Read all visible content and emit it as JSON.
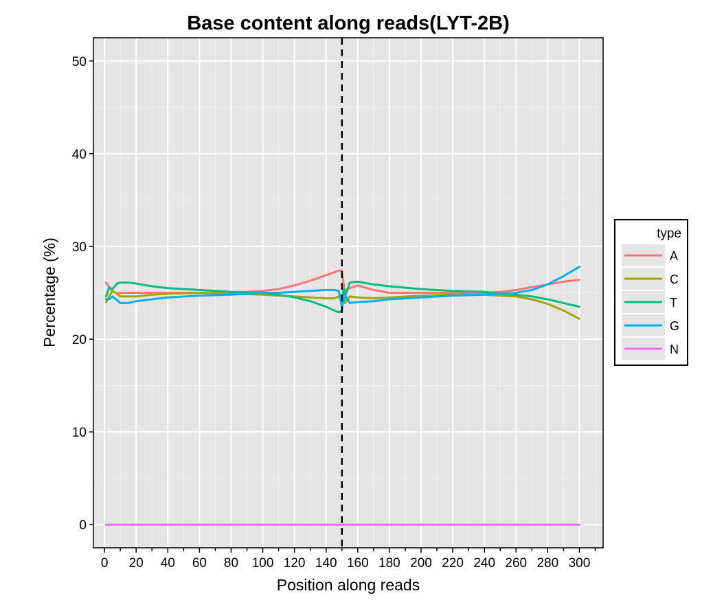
{
  "chart_data": {
    "type": "line",
    "title": "Base content along reads(LYT-2B)",
    "xlabel": "Position along reads",
    "ylabel": "Percentage (%)",
    "xlim": [
      -7,
      315
    ],
    "ylim": [
      -2.5,
      52.5
    ],
    "x_ticks": [
      0,
      20,
      40,
      60,
      80,
      100,
      120,
      140,
      160,
      180,
      200,
      220,
      240,
      260,
      280,
      300
    ],
    "y_ticks": [
      0,
      10,
      20,
      30,
      40,
      50
    ],
    "x_tick_labels": [
      "0",
      "20",
      "40",
      "60",
      "80",
      "100",
      "120",
      "140",
      "160",
      "180",
      "200",
      "220",
      "240",
      "260",
      "280",
      "300"
    ],
    "y_tick_labels": [
      "0",
      "10",
      "20",
      "30",
      "40",
      "50"
    ],
    "grid": true,
    "legend": {
      "title": "type",
      "position": "right"
    },
    "vline": {
      "x": 150,
      "style": "dashed"
    },
    "series": [
      {
        "name": "A",
        "color": "#F8766D",
        "x": [
          1,
          3,
          5,
          8,
          10,
          15,
          20,
          30,
          40,
          60,
          80,
          100,
          110,
          120,
          130,
          140,
          145,
          148,
          150,
          151,
          152,
          155,
          160,
          170,
          180,
          200,
          220,
          240,
          250,
          260,
          270,
          280,
          290,
          300
        ],
        "y": [
          26.1,
          25.6,
          25.2,
          24.9,
          25.0,
          25.0,
          25.0,
          25.0,
          25.0,
          25.0,
          25.0,
          25.2,
          25.4,
          25.8,
          26.3,
          26.9,
          27.2,
          27.4,
          27.4,
          26.0,
          25.2,
          25.5,
          25.8,
          25.3,
          25.0,
          25.0,
          25.0,
          25.0,
          25.1,
          25.3,
          25.6,
          25.9,
          26.2,
          26.4
        ]
      },
      {
        "name": "C",
        "color": "#A3A500",
        "x": [
          1,
          3,
          5,
          8,
          10,
          15,
          20,
          30,
          40,
          60,
          80,
          100,
          110,
          120,
          130,
          140,
          145,
          148,
          150,
          151,
          152,
          155,
          160,
          170,
          180,
          200,
          220,
          240,
          250,
          260,
          270,
          280,
          290,
          300
        ],
        "y": [
          24.0,
          24.6,
          25.2,
          24.9,
          24.6,
          24.6,
          24.6,
          24.8,
          24.9,
          25.0,
          24.9,
          24.8,
          24.7,
          24.6,
          24.5,
          24.4,
          24.4,
          24.6,
          24.7,
          24.9,
          23.9,
          24.6,
          24.5,
          24.4,
          24.5,
          24.7,
          24.8,
          24.8,
          24.7,
          24.6,
          24.3,
          23.8,
          23.1,
          22.2
        ]
      },
      {
        "name": "T",
        "color": "#00BF7D",
        "x": [
          1,
          3,
          5,
          8,
          10,
          15,
          20,
          30,
          40,
          60,
          80,
          100,
          110,
          120,
          130,
          140,
          145,
          148,
          150,
          151,
          152,
          155,
          160,
          170,
          180,
          200,
          220,
          240,
          250,
          260,
          270,
          280,
          290,
          300
        ],
        "y": [
          24.6,
          25.6,
          25.4,
          26.0,
          26.1,
          26.1,
          26.0,
          25.7,
          25.5,
          25.3,
          25.1,
          25.0,
          24.8,
          24.5,
          24.1,
          23.5,
          23.1,
          22.9,
          23.1,
          25.5,
          24.6,
          26.1,
          26.2,
          25.9,
          25.7,
          25.4,
          25.2,
          25.1,
          24.9,
          24.8,
          24.6,
          24.3,
          23.9,
          23.5
        ]
      },
      {
        "name": "G",
        "color": "#00B0F6",
        "x": [
          1,
          3,
          5,
          8,
          10,
          15,
          20,
          30,
          40,
          60,
          80,
          100,
          110,
          120,
          130,
          140,
          145,
          148,
          150,
          151,
          152,
          155,
          160,
          170,
          180,
          200,
          220,
          240,
          250,
          260,
          270,
          280,
          290,
          300
        ],
        "y": [
          24.3,
          24.3,
          24.6,
          24.2,
          23.9,
          23.9,
          24.1,
          24.3,
          24.5,
          24.7,
          24.8,
          25.0,
          25.0,
          25.1,
          25.2,
          25.3,
          25.3,
          25.2,
          23.5,
          24.1,
          24.7,
          23.9,
          24.0,
          24.1,
          24.3,
          24.5,
          24.7,
          24.8,
          24.9,
          25.0,
          25.3,
          25.9,
          26.8,
          27.8
        ]
      },
      {
        "name": "N",
        "color": "#E76BF3",
        "x": [
          1,
          300
        ],
        "y": [
          0.0,
          0.0
        ]
      }
    ]
  }
}
